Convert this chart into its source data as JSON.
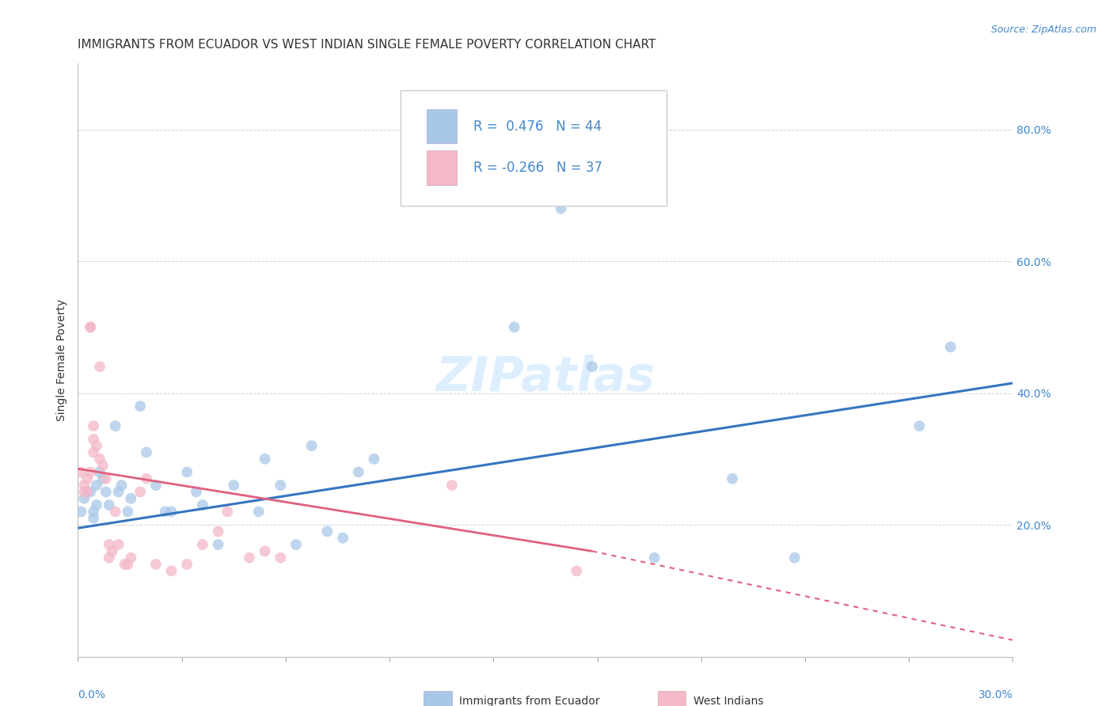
{
  "title": "IMMIGRANTS FROM ECUADOR VS WEST INDIAN SINGLE FEMALE POVERTY CORRELATION CHART",
  "source": "Source: ZipAtlas.com",
  "ylabel": "Single Female Poverty",
  "legend_ecuador_r": "0.476",
  "legend_ecuador_n": "44",
  "legend_westindian_r": "-0.266",
  "legend_westindian_n": "37",
  "ecuador_color": "#a8c8e8",
  "westindian_color": "#f4b8c8",
  "ecuador_line_color": "#3575c0",
  "westindian_line_color": "#e06080",
  "background_color": "#ffffff",
  "grid_color": "#cccccc",
  "watermark": "ZIPatlas",
  "watermark_color": "#ddeeff",
  "xlim": [
    0.0,
    0.3
  ],
  "ylim": [
    0.0,
    0.9
  ],
  "yticks": [
    0.2,
    0.4,
    0.6,
    0.8
  ],
  "ytick_labels": [
    "20.0%",
    "40.0%",
    "60.0%",
    "80.0%"
  ],
  "ecuador_points": [
    [
      0.001,
      0.22
    ],
    [
      0.002,
      0.24
    ],
    [
      0.003,
      0.25
    ],
    [
      0.004,
      0.25
    ],
    [
      0.005,
      0.22
    ],
    [
      0.005,
      0.21
    ],
    [
      0.006,
      0.26
    ],
    [
      0.006,
      0.23
    ],
    [
      0.007,
      0.28
    ],
    [
      0.008,
      0.27
    ],
    [
      0.009,
      0.25
    ],
    [
      0.01,
      0.23
    ],
    [
      0.012,
      0.35
    ],
    [
      0.013,
      0.25
    ],
    [
      0.014,
      0.26
    ],
    [
      0.016,
      0.22
    ],
    [
      0.017,
      0.24
    ],
    [
      0.02,
      0.38
    ],
    [
      0.022,
      0.31
    ],
    [
      0.025,
      0.26
    ],
    [
      0.028,
      0.22
    ],
    [
      0.03,
      0.22
    ],
    [
      0.035,
      0.28
    ],
    [
      0.038,
      0.25
    ],
    [
      0.04,
      0.23
    ],
    [
      0.045,
      0.17
    ],
    [
      0.05,
      0.26
    ],
    [
      0.058,
      0.22
    ],
    [
      0.06,
      0.3
    ],
    [
      0.065,
      0.26
    ],
    [
      0.07,
      0.17
    ],
    [
      0.075,
      0.32
    ],
    [
      0.08,
      0.19
    ],
    [
      0.085,
      0.18
    ],
    [
      0.09,
      0.28
    ],
    [
      0.095,
      0.3
    ],
    [
      0.14,
      0.5
    ],
    [
      0.155,
      0.68
    ],
    [
      0.165,
      0.44
    ],
    [
      0.185,
      0.15
    ],
    [
      0.21,
      0.27
    ],
    [
      0.23,
      0.15
    ],
    [
      0.27,
      0.35
    ],
    [
      0.28,
      0.47
    ]
  ],
  "westindian_points": [
    [
      0.001,
      0.28
    ],
    [
      0.002,
      0.26
    ],
    [
      0.002,
      0.25
    ],
    [
      0.003,
      0.27
    ],
    [
      0.003,
      0.25
    ],
    [
      0.004,
      0.28
    ],
    [
      0.004,
      0.5
    ],
    [
      0.004,
      0.5
    ],
    [
      0.005,
      0.33
    ],
    [
      0.005,
      0.31
    ],
    [
      0.005,
      0.35
    ],
    [
      0.006,
      0.32
    ],
    [
      0.007,
      0.3
    ],
    [
      0.007,
      0.44
    ],
    [
      0.008,
      0.29
    ],
    [
      0.009,
      0.27
    ],
    [
      0.01,
      0.17
    ],
    [
      0.01,
      0.15
    ],
    [
      0.011,
      0.16
    ],
    [
      0.012,
      0.22
    ],
    [
      0.013,
      0.17
    ],
    [
      0.015,
      0.14
    ],
    [
      0.016,
      0.14
    ],
    [
      0.017,
      0.15
    ],
    [
      0.02,
      0.25
    ],
    [
      0.022,
      0.27
    ],
    [
      0.025,
      0.14
    ],
    [
      0.03,
      0.13
    ],
    [
      0.035,
      0.14
    ],
    [
      0.04,
      0.17
    ],
    [
      0.045,
      0.19
    ],
    [
      0.048,
      0.22
    ],
    [
      0.055,
      0.15
    ],
    [
      0.06,
      0.16
    ],
    [
      0.065,
      0.15
    ],
    [
      0.12,
      0.26
    ],
    [
      0.16,
      0.13
    ]
  ],
  "ecuador_line": [
    [
      0.0,
      0.195
    ],
    [
      0.3,
      0.415
    ]
  ],
  "westindian_line_solid": [
    [
      0.0,
      0.285
    ],
    [
      0.165,
      0.16
    ]
  ],
  "westindian_line_dash": [
    [
      0.165,
      0.16
    ],
    [
      0.3,
      0.025
    ]
  ],
  "title_fontsize": 11,
  "source_fontsize": 9,
  "axis_label_fontsize": 10,
  "tick_fontsize": 10,
  "legend_fontsize": 12,
  "watermark_fontsize": 44,
  "marker_size": 100,
  "text_blue": "#4488cc",
  "text_dark": "#333333"
}
